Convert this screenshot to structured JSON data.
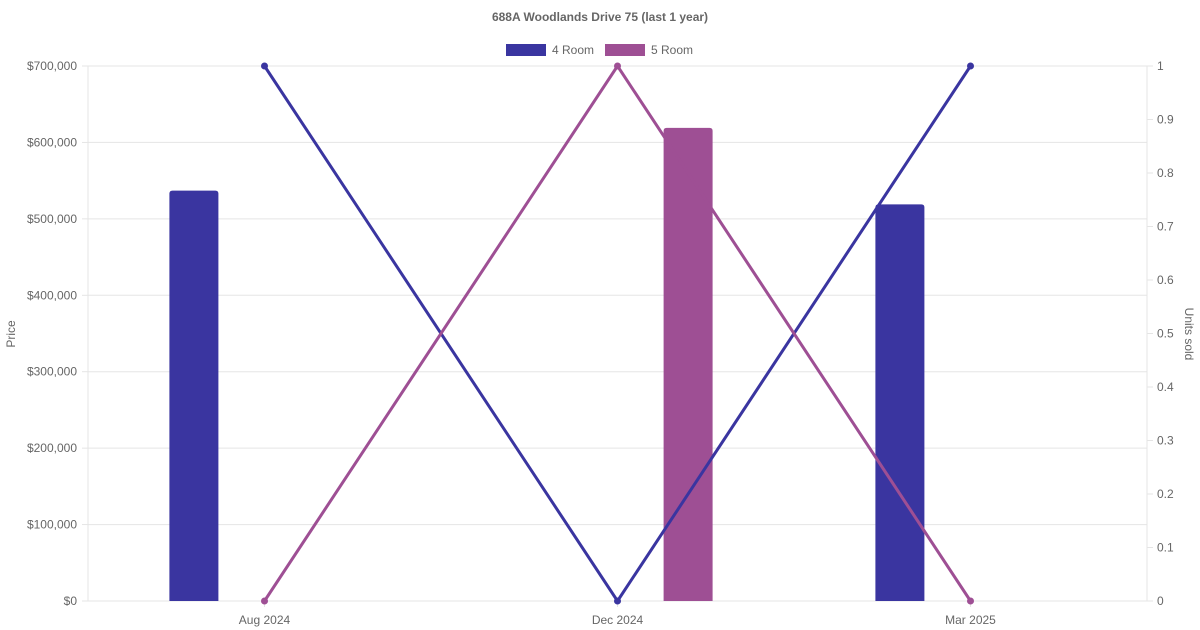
{
  "chart_data": {
    "type": "bar",
    "title": "688A Woodlands Drive 75 (last 1 year)",
    "categories": [
      "Aug 2024",
      "Dec 2024",
      "Mar 2025"
    ],
    "y_left": {
      "label": "Price",
      "ylim": [
        0,
        700000
      ],
      "ticks": [
        "$0",
        "$100,000",
        "$200,000",
        "$300,000",
        "$400,000",
        "$500,000",
        "$600,000",
        "$700,000"
      ]
    },
    "y_right": {
      "label": "Units sold",
      "ylim": [
        0,
        1
      ],
      "ticks": [
        "0",
        "0.1",
        "0.2",
        "0.3",
        "0.4",
        "0.5",
        "0.6",
        "0.7",
        "0.8",
        "0.9",
        "1"
      ]
    },
    "legend_position": "top-center",
    "grid": true,
    "series": [
      {
        "name": "4 Room",
        "color": "#3a35a0",
        "price": [
          537000,
          null,
          519000
        ],
        "units_sold": [
          1,
          0,
          1
        ]
      },
      {
        "name": "5 Room",
        "color": "#9e4f94",
        "price": [
          null,
          619000,
          null
        ],
        "units_sold": [
          0,
          1,
          0
        ]
      }
    ]
  }
}
